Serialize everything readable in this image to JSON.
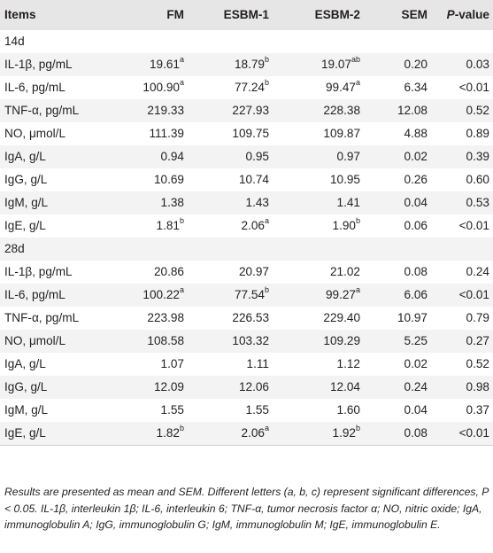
{
  "table": {
    "headers": [
      "Items",
      "FM",
      "ESBM-1",
      "ESBM-2",
      "SEM"
    ],
    "pvalue_italic": "P",
    "pvalue_rest": "-value",
    "rows": [
      {
        "type": "section",
        "label": "14d"
      },
      {
        "type": "data",
        "cells": [
          "IL-1β, pg/mL",
          "19.61",
          "18.79",
          "19.07",
          "0.20",
          "0.03"
        ],
        "sups": [
          "",
          "a",
          "b",
          "ab",
          "",
          ""
        ]
      },
      {
        "type": "data",
        "cells": [
          "IL-6, pg/mL",
          "100.90",
          "77.24",
          "99.47",
          "6.34",
          "<0.01"
        ],
        "sups": [
          "",
          "a",
          "b",
          "a",
          "",
          ""
        ]
      },
      {
        "type": "data",
        "cells": [
          "TNF-α, pg/mL",
          "219.33",
          "227.93",
          "228.38",
          "12.08",
          "0.52"
        ],
        "sups": [
          "",
          "",
          "",
          "",
          "",
          ""
        ]
      },
      {
        "type": "data",
        "cells": [
          "NO, μmol/L",
          "111.39",
          "109.75",
          "109.87",
          "4.88",
          "0.89"
        ],
        "sups": [
          "",
          "",
          "",
          "",
          "",
          ""
        ]
      },
      {
        "type": "data",
        "cells": [
          "IgA, g/L",
          "0.94",
          "0.95",
          "0.97",
          "0.02",
          "0.39"
        ],
        "sups": [
          "",
          "",
          "",
          "",
          "",
          ""
        ]
      },
      {
        "type": "data",
        "cells": [
          "IgG, g/L",
          "10.69",
          "10.74",
          "10.95",
          "0.26",
          "0.60"
        ],
        "sups": [
          "",
          "",
          "",
          "",
          "",
          ""
        ]
      },
      {
        "type": "data",
        "cells": [
          "IgM, g/L",
          "1.38",
          "1.43",
          "1.41",
          "0.04",
          "0.53"
        ],
        "sups": [
          "",
          "",
          "",
          "",
          "",
          ""
        ]
      },
      {
        "type": "data",
        "cells": [
          "IgE, g/L",
          "1.81",
          "2.06",
          "1.90",
          "0.06",
          "<0.01"
        ],
        "sups": [
          "",
          "b",
          "a",
          "b",
          "",
          ""
        ]
      },
      {
        "type": "section",
        "label": "28d"
      },
      {
        "type": "data",
        "cells": [
          "IL-1β, pg/mL",
          "20.86",
          "20.97",
          "21.02",
          "0.08",
          "0.24"
        ],
        "sups": [
          "",
          "",
          "",
          "",
          "",
          ""
        ]
      },
      {
        "type": "data",
        "cells": [
          "IL-6, pg/mL",
          "100.22",
          "77.54",
          "99.27",
          "6.06",
          "<0.01"
        ],
        "sups": [
          "",
          "a",
          "b",
          "a",
          "",
          ""
        ]
      },
      {
        "type": "data",
        "cells": [
          "TNF-α, pg/mL",
          "223.98",
          "226.53",
          "229.40",
          "10.97",
          "0.79"
        ],
        "sups": [
          "",
          "",
          "",
          "",
          "",
          ""
        ]
      },
      {
        "type": "data",
        "cells": [
          "NO, μmol/L",
          "108.58",
          "103.32",
          "109.29",
          "5.25",
          "0.27"
        ],
        "sups": [
          "",
          "",
          "",
          "",
          "",
          ""
        ]
      },
      {
        "type": "data",
        "cells": [
          "IgA, g/L",
          "1.07",
          "1.11",
          "1.12",
          "0.02",
          "0.52"
        ],
        "sups": [
          "",
          "",
          "",
          "",
          "",
          ""
        ]
      },
      {
        "type": "data",
        "cells": [
          "IgG, g/L",
          "12.09",
          "12.06",
          "12.04",
          "0.24",
          "0.98"
        ],
        "sups": [
          "",
          "",
          "",
          "",
          "",
          ""
        ]
      },
      {
        "type": "data",
        "cells": [
          "IgM, g/L",
          "1.55",
          "1.55",
          "1.60",
          "0.04",
          "0.37"
        ],
        "sups": [
          "",
          "",
          "",
          "",
          "",
          ""
        ]
      },
      {
        "type": "data",
        "cells": [
          "IgE, g/L",
          "1.82",
          "2.06",
          "1.92",
          "0.08",
          "<0.01"
        ],
        "sups": [
          "",
          "b",
          "a",
          "b",
          "",
          ""
        ]
      }
    ]
  },
  "footnote": "Results are presented as mean and SEM. Different letters (a, b, c) represent significant differences, P < 0.05. IL-1β, interleukin 1β; IL-6, interleukin 6; TNF-α, tumor necrosis factor α; NO, nitric oxide; IgA, immunoglobulin A; IgG, immunoglobulin G; IgM, immunoglobulin M; IgE, immunoglobulin E."
}
